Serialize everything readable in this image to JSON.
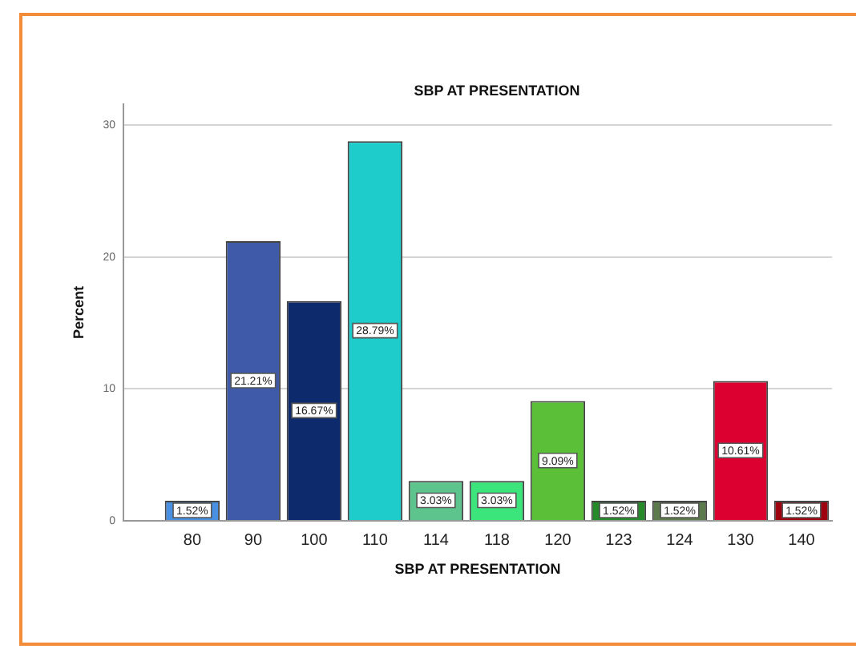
{
  "chart_data": {
    "type": "bar",
    "title": "SBP AT PRESENTATION",
    "xlabel": "SBP AT PRESENTATION",
    "ylabel": "Percent",
    "categories": [
      "80",
      "90",
      "100",
      "110",
      "114",
      "118",
      "120",
      "123",
      "124",
      "130",
      "140"
    ],
    "values": [
      1.52,
      21.21,
      16.67,
      28.79,
      3.03,
      3.03,
      9.09,
      1.52,
      1.52,
      10.61,
      1.52
    ],
    "colors": [
      "#4a90e2",
      "#3e5aa8",
      "#0c2a6c",
      "#1ecccc",
      "#5cc48c",
      "#3ce47c",
      "#5bbf38",
      "#268a2a",
      "#5c7a4c",
      "#db0030",
      "#9e0010"
    ],
    "value_labels": [
      "1.52%",
      "21.21%",
      "16.67%",
      "28.79%",
      "3.03%",
      "3.03%",
      "9.09%",
      "1.52%",
      "1.52%",
      "10.61%",
      "1.52%"
    ],
    "ylim": [
      0,
      31.6
    ],
    "yticks": [
      0,
      10,
      20,
      30
    ],
    "grid": "y"
  }
}
